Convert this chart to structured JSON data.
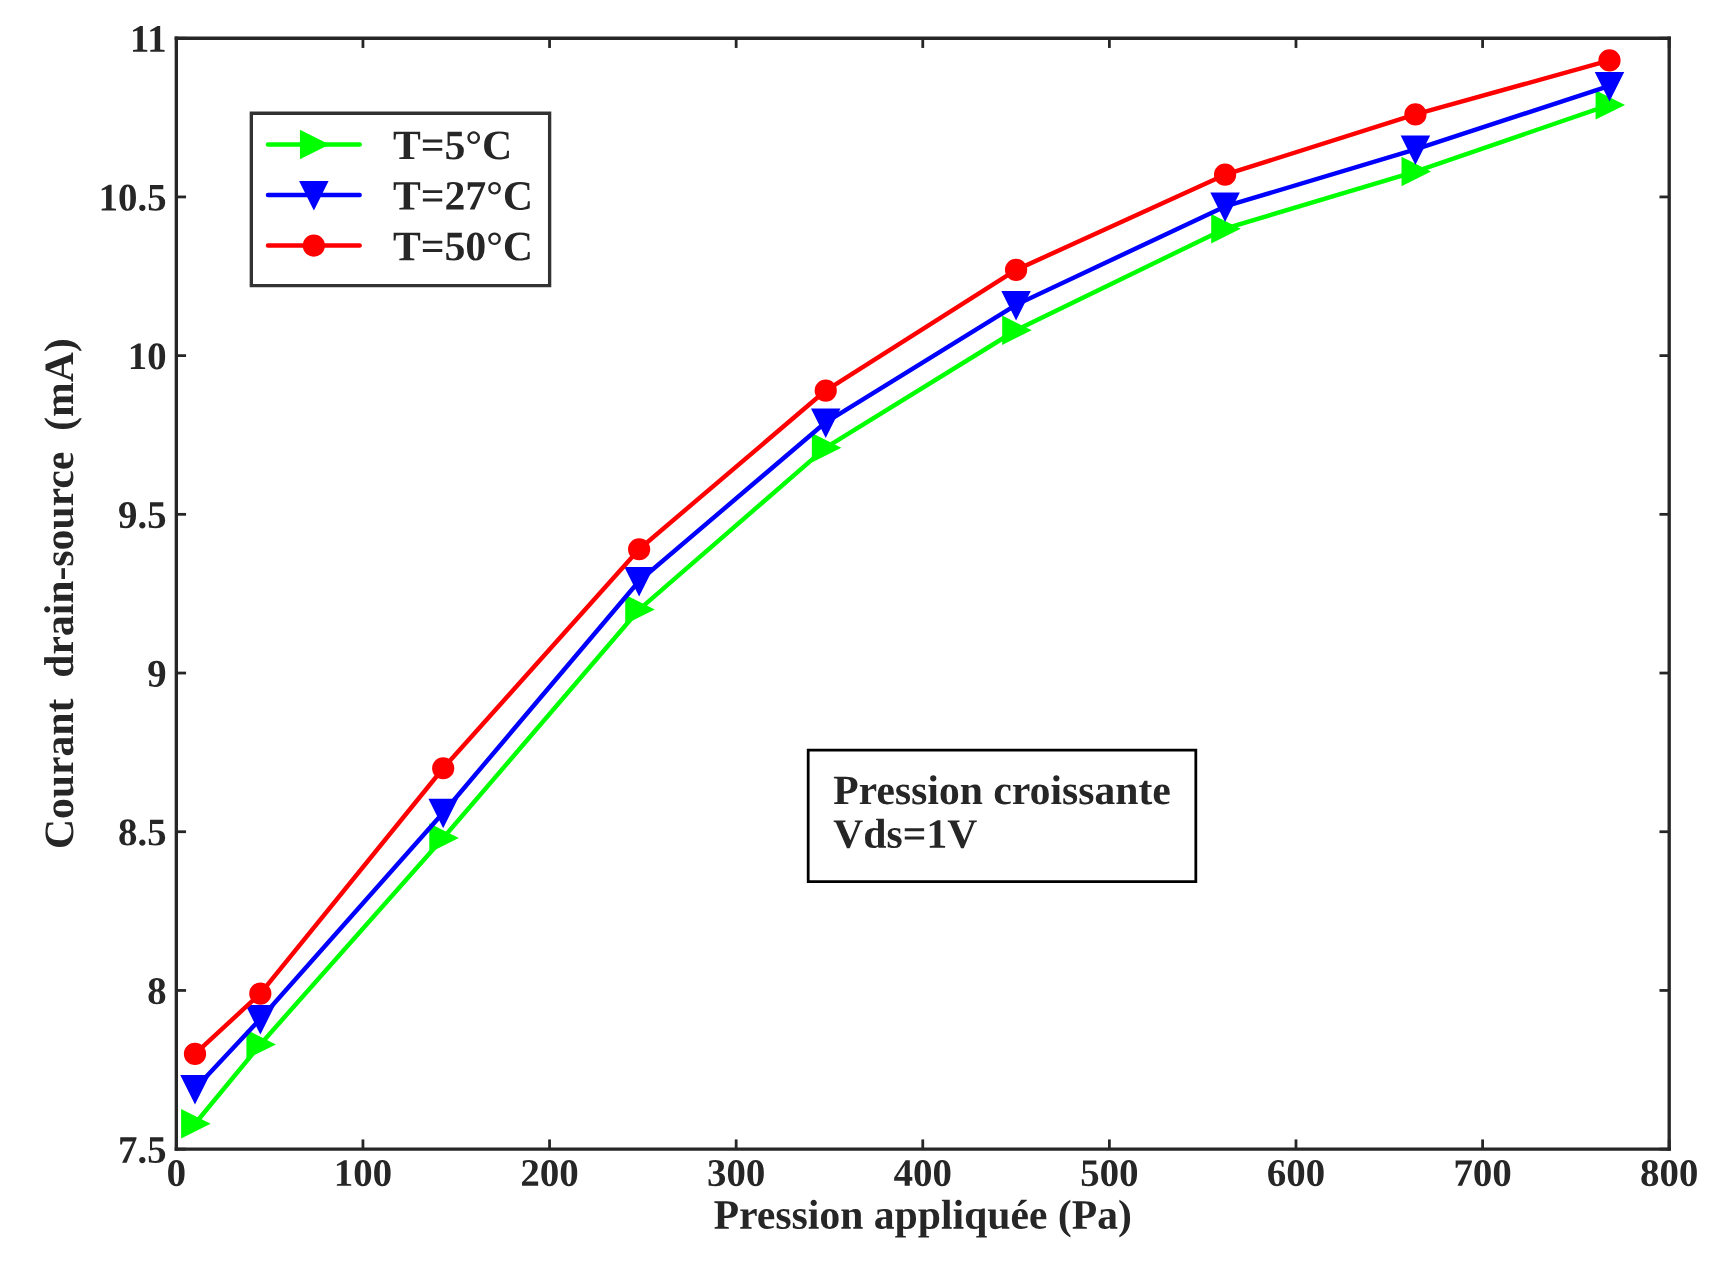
{
  "chart_data": {
    "type": "line",
    "xlabel": "Pression appliquée (Pa)",
    "ylabel": "Courant  drain-source  (mA)",
    "x": [
      10,
      45,
      143,
      248,
      348,
      450,
      562,
      664,
      768
    ],
    "series": [
      {
        "name": "T=5°C",
        "color": "#00ff00",
        "marker": "triangle-right",
        "values": [
          7.58,
          7.83,
          8.48,
          9.2,
          9.71,
          10.08,
          10.4,
          10.58,
          10.79
        ]
      },
      {
        "name": "T=27°C",
        "color": "#0000ff",
        "marker": "triangle-down",
        "values": [
          7.69,
          7.91,
          8.56,
          9.29,
          9.79,
          10.16,
          10.47,
          10.65,
          10.85
        ]
      },
      {
        "name": "T=50°C",
        "color": "#ff0000",
        "marker": "circle",
        "values": [
          7.8,
          7.99,
          8.7,
          9.39,
          9.89,
          10.27,
          10.57,
          10.76,
          10.93
        ]
      }
    ],
    "xlim": [
      0,
      800
    ],
    "xticks": [
      0,
      100,
      200,
      300,
      400,
      500,
      600,
      700,
      800
    ],
    "ylim": [
      7.5,
      11
    ],
    "yticks": [
      7.5,
      8,
      8.5,
      9,
      9.5,
      10,
      10.5,
      11
    ],
    "annotations": [
      "Pression croissante\nVds=1V"
    ],
    "legend": "top left",
    "grid": false,
    "line_style": "solid"
  }
}
